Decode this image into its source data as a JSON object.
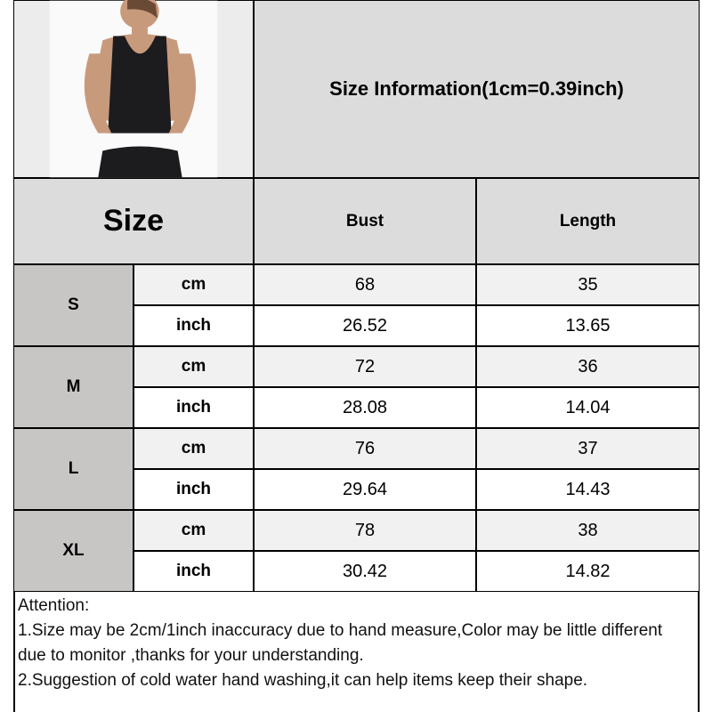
{
  "title": "Size Information(1cm=0.39inch)",
  "header": {
    "size": "Size",
    "columns": [
      "Bust",
      "Length"
    ]
  },
  "rows": [
    {
      "size": "S",
      "cm": {
        "unit": "cm",
        "bust": "68",
        "length": "35"
      },
      "inch": {
        "unit": "inch",
        "bust": "26.52",
        "length": "13.65"
      }
    },
    {
      "size": "M",
      "cm": {
        "unit": "cm",
        "bust": "72",
        "length": "36"
      },
      "inch": {
        "unit": "inch",
        "bust": "28.08",
        "length": "14.04"
      }
    },
    {
      "size": "L",
      "cm": {
        "unit": "cm",
        "bust": "76",
        "length": "37"
      },
      "inch": {
        "unit": "inch",
        "bust": "29.64",
        "length": "14.43"
      }
    },
    {
      "size": "XL",
      "cm": {
        "unit": "cm",
        "bust": "78",
        "length": "38"
      },
      "inch": {
        "unit": "inch",
        "bust": "30.42",
        "length": "14.82"
      }
    }
  ],
  "attention": {
    "heading": "Attention:",
    "lines": [
      "1.Size may be 2cm/1inch inaccuracy due to hand measure,Color may be little different due to monitor ,thanks for your understanding.",
      "2.Suggestion of cold water hand washing,it can help items keep their shape."
    ]
  },
  "colors": {
    "header_bg": "#dcdcdc",
    "size_bg": "#c8c5c5",
    "cm_row_bg": "#f1f1f1",
    "border": "#000000"
  }
}
